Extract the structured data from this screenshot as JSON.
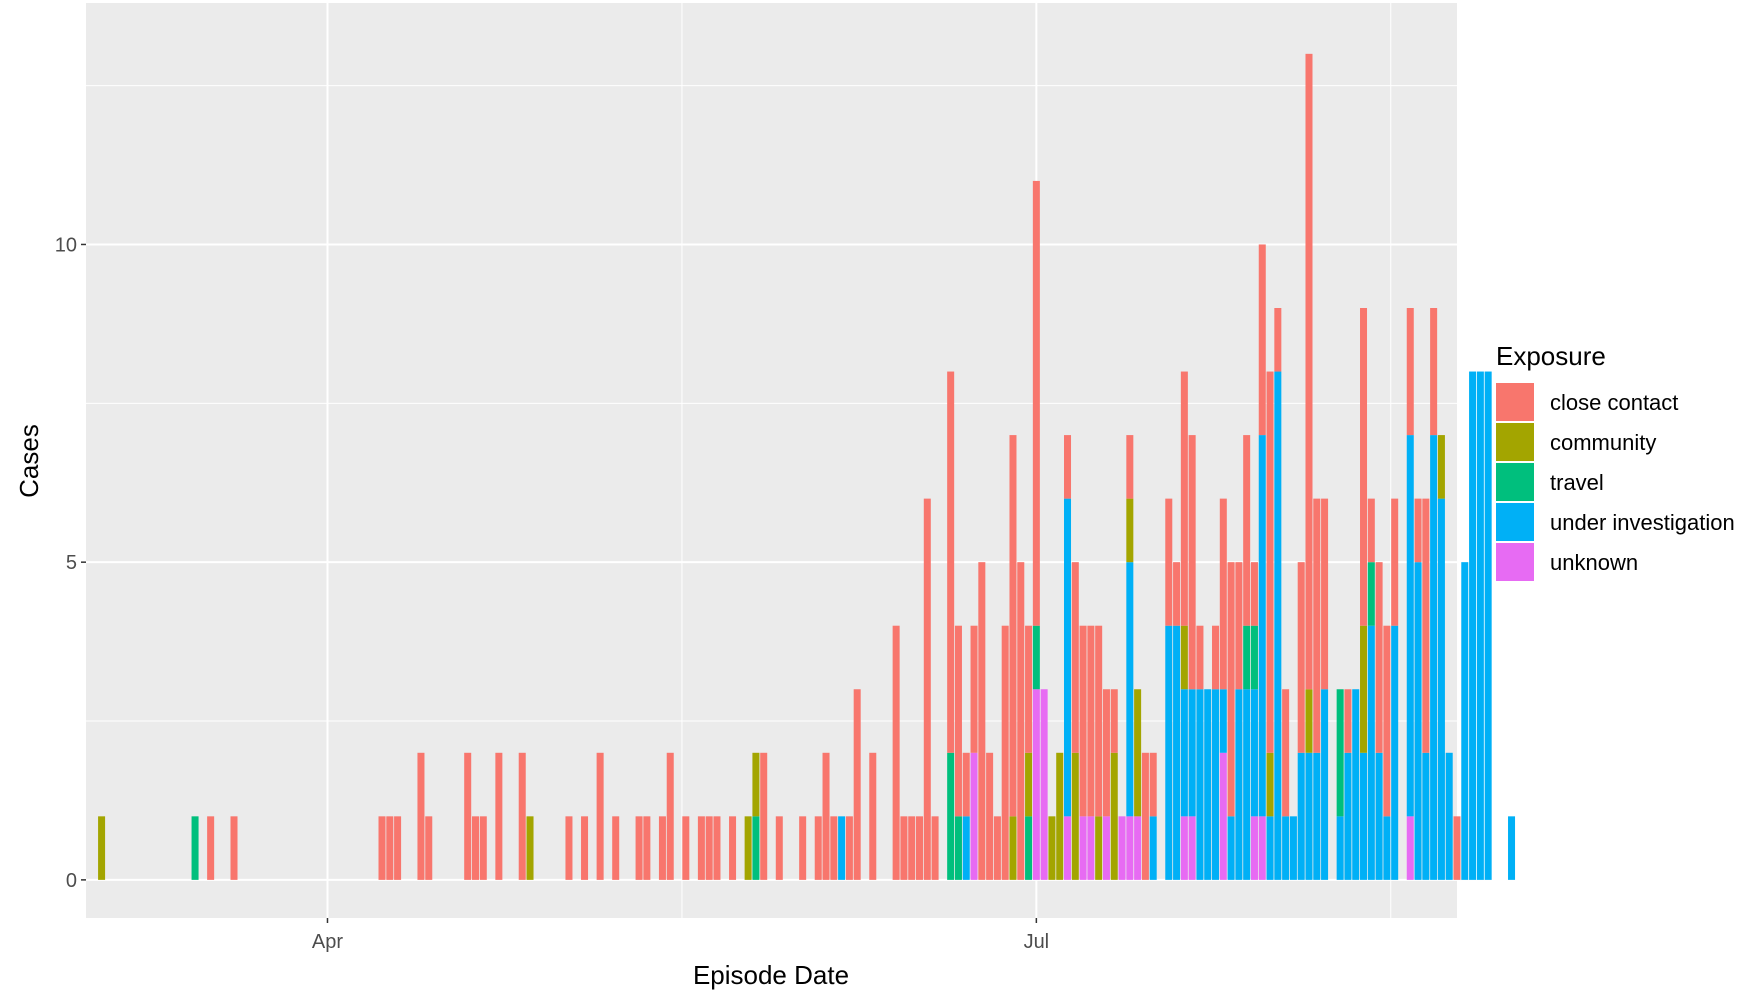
{
  "chart_data": {
    "type": "bar",
    "stacked": true,
    "xlabel": "Episode Date",
    "ylabel": "Cases",
    "x_start_date": "2020-03-03",
    "x_range_dates": [
      "2020-03-01",
      "2020-08-24"
    ],
    "xticks": [
      {
        "label": "Apr",
        "date": "2020-04-01"
      },
      {
        "label": "Jul",
        "date": "2020-07-01"
      }
    ],
    "yticks": [
      0,
      5,
      10
    ],
    "ylim": [
      -0.6,
      13.8
    ],
    "grid": true,
    "legend": {
      "title": "Exposure",
      "position": "right"
    },
    "series": [
      {
        "name": "close contact",
        "color": "#F8766D"
      },
      {
        "name": "community",
        "color": "#A3A500"
      },
      {
        "name": "travel",
        "color": "#00BF7D"
      },
      {
        "name": "under investigation",
        "color": "#00B0F6"
      },
      {
        "name": "unknown",
        "color": "#E76BF3"
      }
    ],
    "stack_order_bottom_to_top": [
      "unknown",
      "under investigation",
      "travel",
      "community",
      "close contact"
    ],
    "bars": [
      {
        "date": "2020-03-03",
        "community": 1
      },
      {
        "date": "2020-03-15",
        "travel": 1
      },
      {
        "date": "2020-03-17",
        "close contact": 1
      },
      {
        "date": "2020-03-20",
        "close contact": 1
      },
      {
        "date": "2020-04-08",
        "close contact": 1
      },
      {
        "date": "2020-04-09",
        "close contact": 1
      },
      {
        "date": "2020-04-10",
        "close contact": 1
      },
      {
        "date": "2020-04-13",
        "close contact": 2
      },
      {
        "date": "2020-04-14",
        "close contact": 1
      },
      {
        "date": "2020-04-19",
        "close contact": 2
      },
      {
        "date": "2020-04-20",
        "close contact": 1
      },
      {
        "date": "2020-04-21",
        "close contact": 1
      },
      {
        "date": "2020-04-23",
        "close contact": 2
      },
      {
        "date": "2020-04-26",
        "close contact": 2
      },
      {
        "date": "2020-04-27",
        "community": 1
      },
      {
        "date": "2020-05-02",
        "close contact": 1
      },
      {
        "date": "2020-05-04",
        "close contact": 1
      },
      {
        "date": "2020-05-06",
        "close contact": 2
      },
      {
        "date": "2020-05-08",
        "close contact": 1
      },
      {
        "date": "2020-05-11",
        "close contact": 1
      },
      {
        "date": "2020-05-12",
        "close contact": 1
      },
      {
        "date": "2020-05-14",
        "close contact": 1
      },
      {
        "date": "2020-05-15",
        "close contact": 2
      },
      {
        "date": "2020-05-17",
        "close contact": 1
      },
      {
        "date": "2020-05-19",
        "close contact": 1
      },
      {
        "date": "2020-05-20",
        "close contact": 1
      },
      {
        "date": "2020-05-21",
        "close contact": 1
      },
      {
        "date": "2020-05-23",
        "close contact": 1
      },
      {
        "date": "2020-05-25",
        "community": 1
      },
      {
        "date": "2020-05-26",
        "travel": 1,
        "community": 1
      },
      {
        "date": "2020-05-27",
        "close contact": 2
      },
      {
        "date": "2020-05-29",
        "close contact": 1
      },
      {
        "date": "2020-06-01",
        "close contact": 1
      },
      {
        "date": "2020-06-03",
        "close contact": 1
      },
      {
        "date": "2020-06-04",
        "close contact": 2
      },
      {
        "date": "2020-06-05",
        "close contact": 1
      },
      {
        "date": "2020-06-06",
        "under investigation": 1
      },
      {
        "date": "2020-06-07",
        "close contact": 1
      },
      {
        "date": "2020-06-08",
        "close contact": 3
      },
      {
        "date": "2020-06-10",
        "close contact": 2
      },
      {
        "date": "2020-06-13",
        "close contact": 4
      },
      {
        "date": "2020-06-14",
        "close contact": 1
      },
      {
        "date": "2020-06-15",
        "close contact": 1
      },
      {
        "date": "2020-06-16",
        "close contact": 1
      },
      {
        "date": "2020-06-17",
        "close contact": 6
      },
      {
        "date": "2020-06-18",
        "close contact": 1
      },
      {
        "date": "2020-06-20",
        "travel": 2,
        "close contact": 6
      },
      {
        "date": "2020-06-21",
        "travel": 1,
        "close contact": 3
      },
      {
        "date": "2020-06-22",
        "under investigation": 1,
        "close contact": 1
      },
      {
        "date": "2020-06-23",
        "unknown": 2,
        "close contact": 2
      },
      {
        "date": "2020-06-24",
        "close contact": 5
      },
      {
        "date": "2020-06-25",
        "close contact": 2
      },
      {
        "date": "2020-06-26",
        "close contact": 1
      },
      {
        "date": "2020-06-27",
        "close contact": 4
      },
      {
        "date": "2020-06-28",
        "community": 1,
        "close contact": 6
      },
      {
        "date": "2020-06-29",
        "close contact": 5
      },
      {
        "date": "2020-06-30",
        "travel": 1,
        "community": 1,
        "close contact": 2
      },
      {
        "date": "2020-07-01",
        "unknown": 3,
        "travel": 1,
        "close contact": 7
      },
      {
        "date": "2020-07-02",
        "unknown": 3
      },
      {
        "date": "2020-07-03",
        "community": 1
      },
      {
        "date": "2020-07-04",
        "community": 2
      },
      {
        "date": "2020-07-05",
        "unknown": 1,
        "under investigation": 5,
        "close contact": 1
      },
      {
        "date": "2020-07-06",
        "community": 2,
        "close contact": 3
      },
      {
        "date": "2020-07-07",
        "unknown": 1,
        "close contact": 3
      },
      {
        "date": "2020-07-08",
        "unknown": 1,
        "close contact": 3
      },
      {
        "date": "2020-07-09",
        "community": 1,
        "close contact": 3
      },
      {
        "date": "2020-07-10",
        "unknown": 1,
        "close contact": 2
      },
      {
        "date": "2020-07-11",
        "community": 2,
        "close contact": 1
      },
      {
        "date": "2020-07-12",
        "unknown": 1
      },
      {
        "date": "2020-07-13",
        "unknown": 1,
        "under investigation": 4,
        "community": 1,
        "close contact": 1
      },
      {
        "date": "2020-07-14",
        "unknown": 1,
        "community": 2
      },
      {
        "date": "2020-07-15",
        "close contact": 2
      },
      {
        "date": "2020-07-16",
        "under investigation": 1,
        "close contact": 1
      },
      {
        "date": "2020-07-18",
        "under investigation": 4,
        "close contact": 2
      },
      {
        "date": "2020-07-19",
        "under investigation": 4,
        "close contact": 1
      },
      {
        "date": "2020-07-20",
        "unknown": 1,
        "under investigation": 2,
        "community": 1,
        "close contact": 4
      },
      {
        "date": "2020-07-21",
        "unknown": 1,
        "under investigation": 2,
        "close contact": 4
      },
      {
        "date": "2020-07-22",
        "under investigation": 3,
        "close contact": 1
      },
      {
        "date": "2020-07-23",
        "under investigation": 3
      },
      {
        "date": "2020-07-24",
        "under investigation": 3,
        "close contact": 1
      },
      {
        "date": "2020-07-25",
        "unknown": 2,
        "under investigation": 1,
        "close contact": 3
      },
      {
        "date": "2020-07-26",
        "under investigation": 1,
        "close contact": 4
      },
      {
        "date": "2020-07-27",
        "under investigation": 3,
        "close contact": 2
      },
      {
        "date": "2020-07-28",
        "under investigation": 3,
        "travel": 1,
        "close contact": 3
      },
      {
        "date": "2020-07-29",
        "unknown": 1,
        "under investigation": 2,
        "travel": 1,
        "close contact": 1
      },
      {
        "date": "2020-07-30",
        "unknown": 1,
        "under investigation": 6,
        "close contact": 3
      },
      {
        "date": "2020-07-31",
        "under investigation": 1,
        "community": 1,
        "close contact": 6
      },
      {
        "date": "2020-08-01",
        "under investigation": 8,
        "close contact": 1
      },
      {
        "date": "2020-08-02",
        "under investigation": 1,
        "close contact": 2
      },
      {
        "date": "2020-08-03",
        "under investigation": 1
      },
      {
        "date": "2020-08-04",
        "under investigation": 2,
        "close contact": 3
      },
      {
        "date": "2020-08-05",
        "under investigation": 2,
        "community": 1,
        "close contact": 10
      },
      {
        "date": "2020-08-06",
        "under investigation": 2,
        "close contact": 4
      },
      {
        "date": "2020-08-07",
        "under investigation": 3,
        "close contact": 3
      },
      {
        "date": "2020-08-09",
        "under investigation": 1,
        "travel": 2
      },
      {
        "date": "2020-08-10",
        "under investigation": 2,
        "close contact": 1
      },
      {
        "date": "2020-08-11",
        "under investigation": 3
      },
      {
        "date": "2020-08-12",
        "under investigation": 2,
        "community": 2,
        "close contact": 5
      },
      {
        "date": "2020-08-13",
        "under investigation": 4,
        "travel": 1,
        "close contact": 1
      },
      {
        "date": "2020-08-14",
        "under investigation": 2,
        "close contact": 3
      },
      {
        "date": "2020-08-15",
        "under investigation": 1,
        "close contact": 3
      },
      {
        "date": "2020-08-16",
        "under investigation": 4,
        "close contact": 2
      },
      {
        "date": "2020-08-18",
        "unknown": 1,
        "under investigation": 6,
        "close contact": 2
      },
      {
        "date": "2020-08-19",
        "under investigation": 5,
        "close contact": 1
      },
      {
        "date": "2020-08-20",
        "under investigation": 2,
        "close contact": 4
      },
      {
        "date": "2020-08-21",
        "under investigation": 7,
        "close contact": 2
      },
      {
        "date": "2020-08-22",
        "under investigation": 6,
        "community": 1
      },
      {
        "date": "2020-08-23",
        "under investigation": 2
      },
      {
        "date": "2020-08-24",
        "close contact": 1
      },
      {
        "date": "2020-08-25",
        "under investigation": 5
      },
      {
        "date": "2020-08-26",
        "under investigation": 8
      },
      {
        "date": "2020-08-27",
        "under investigation": 8
      },
      {
        "date": "2020-08-28",
        "under investigation": 8
      },
      {
        "date": "2020-08-31",
        "under investigation": 1
      }
    ]
  }
}
